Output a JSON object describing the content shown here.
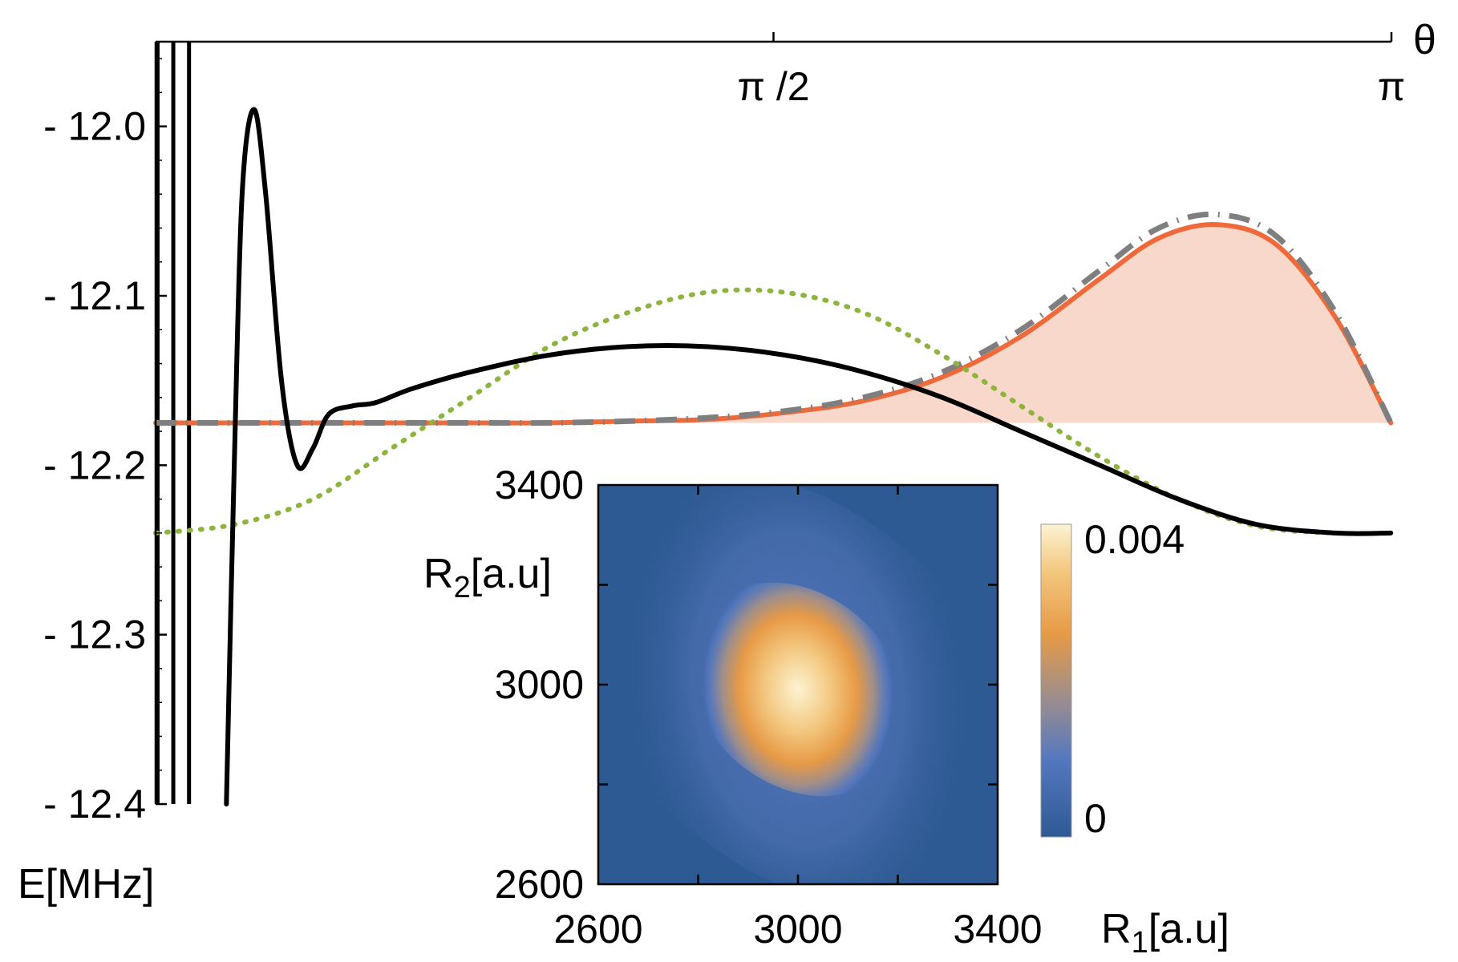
{
  "chart_data": [
    {
      "type": "line",
      "xlabel": "θ",
      "ylabel": "E[MHz]",
      "xlim": [
        0,
        3.14159
      ],
      "ylim": [
        -12.4,
        -11.95
      ],
      "x_ticks": [
        {
          "value": 1.5708,
          "label": "π /2"
        },
        {
          "value": 3.14159,
          "label": "π"
        }
      ],
      "y_ticks": [
        {
          "value": -12.0,
          "label": "- 12.0"
        },
        {
          "value": -12.1,
          "label": "- 12.1"
        },
        {
          "value": -12.2,
          "label": "- 12.2"
        },
        {
          "value": -12.3,
          "label": "- 12.3"
        },
        {
          "value": -12.4,
          "label": "- 12.4"
        }
      ],
      "legend": "none",
      "grid": false,
      "series": [
        {
          "style": "solid",
          "color": "#000000",
          "x": [
            0.18,
            0.2,
            0.22,
            0.25,
            0.28,
            0.32,
            0.36,
            0.4,
            0.44,
            0.5,
            0.56,
            0.65,
            0.8,
            1.0,
            1.2,
            1.4,
            1.6,
            1.8,
            2.0,
            2.2,
            2.4,
            2.6,
            2.8,
            3.0,
            3.14
          ],
          "y": [
            -12.4,
            -12.2,
            -12.04,
            -11.99,
            -12.04,
            -12.15,
            -12.2,
            -12.19,
            -12.17,
            -12.165,
            -12.163,
            -12.155,
            -12.145,
            -12.135,
            -12.13,
            -12.13,
            -12.135,
            -12.145,
            -12.16,
            -12.18,
            -12.2,
            -12.22,
            -12.235,
            -12.24,
            -12.24
          ]
        },
        {
          "style": "dotted",
          "color": "#8db43c",
          "x": [
            0.0,
            0.2,
            0.4,
            0.6,
            0.8,
            1.0,
            1.2,
            1.4,
            1.6,
            1.8,
            2.0,
            2.2,
            2.4,
            2.6,
            2.8,
            3.0,
            3.14
          ],
          "y": [
            -12.24,
            -12.235,
            -12.22,
            -12.19,
            -12.16,
            -12.13,
            -12.11,
            -12.098,
            -12.098,
            -12.11,
            -12.135,
            -12.165,
            -12.195,
            -12.22,
            -12.236,
            -12.24,
            -12.24
          ]
        },
        {
          "style": "dashdot",
          "color": "#7f7f7f",
          "x": [
            0.0,
            0.4,
            0.8,
            1.0,
            1.2,
            1.4,
            1.6,
            1.8,
            2.0,
            2.2,
            2.4,
            2.55,
            2.7,
            2.85,
            3.0,
            3.14
          ],
          "y": [
            -12.175,
            -12.175,
            -12.175,
            -12.175,
            -12.174,
            -12.172,
            -12.168,
            -12.16,
            -12.145,
            -12.12,
            -12.085,
            -12.06,
            -12.052,
            -12.065,
            -12.11,
            -12.175
          ]
        },
        {
          "style": "solid-filled",
          "color": "#ef6a3a",
          "fill": "#f9d8cc",
          "x": [
            0.0,
            0.4,
            0.8,
            1.0,
            1.2,
            1.4,
            1.6,
            1.8,
            2.0,
            2.2,
            2.4,
            2.55,
            2.7,
            2.85,
            3.0,
            3.14
          ],
          "y": [
            -12.175,
            -12.175,
            -12.175,
            -12.175,
            -12.174,
            -12.173,
            -12.169,
            -12.162,
            -12.148,
            -12.124,
            -12.09,
            -12.066,
            -12.058,
            -12.07,
            -12.113,
            -12.175
          ]
        }
      ],
      "vertical_lines": [
        {
          "x": 0.005,
          "color": "#000000"
        },
        {
          "x": 0.045,
          "color": "#000000"
        },
        {
          "x": 0.085,
          "color": "#000000"
        }
      ]
    },
    {
      "type": "heatmap",
      "xlabel": "R1[a.u]",
      "ylabel": "R2[a.u]",
      "xlim": [
        2600,
        3400
      ],
      "ylim": [
        2600,
        3400
      ],
      "x_ticks": [
        {
          "value": 2600,
          "label": "2600"
        },
        {
          "value": 3000,
          "label": "3000"
        },
        {
          "value": 3400,
          "label": "3400"
        }
      ],
      "y_ticks": [
        {
          "value": 3400,
          "label": "3400"
        },
        {
          "value": 3000,
          "label": "3000"
        },
        {
          "value": 2600,
          "label": "2600"
        }
      ],
      "peak": {
        "x": 3000,
        "y": 3000,
        "value": 0.004
      },
      "colorbar": {
        "range": [
          0,
          0.004
        ],
        "labels": [
          {
            "value": 0.004,
            "label": "0.004"
          },
          {
            "value": 0,
            "label": "0"
          }
        ],
        "colors": [
          "#2e5a93",
          "#5578c0",
          "#9f8e8a",
          "#e79a46",
          "#f3c77f",
          "#fdf3d2"
        ]
      }
    }
  ]
}
